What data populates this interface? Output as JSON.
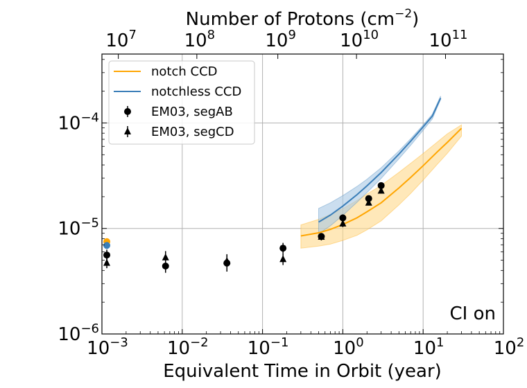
{
  "chart_data": {
    "type": "scatter",
    "xlabel": "Equivalent Time in Orbit (year)",
    "x2label": "Number of Protons (cm$^{-2}$)",
    "x2label_main": "Number of Protons (cm",
    "x2label_exp": "−2",
    "x2label_close": ")",
    "ylabel": "",
    "xscale": "log",
    "yscale": "log",
    "xlim": [
      0.001,
      100
    ],
    "ylim": [
      1e-06,
      0.00045
    ],
    "grid": true,
    "legend_position": "top-left",
    "annotation": "CI on",
    "x_ticks": [
      {
        "value": 0.001,
        "base": "10",
        "exp": "−3"
      },
      {
        "value": 0.01,
        "base": "10",
        "exp": "−2"
      },
      {
        "value": 0.1,
        "base": "10",
        "exp": "−1"
      },
      {
        "value": 1,
        "base": "10",
        "exp": "0"
      },
      {
        "value": 10,
        "base": "10",
        "exp": "1"
      },
      {
        "value": 100,
        "base": "10",
        "exp": "2"
      }
    ],
    "y_ticks": [
      {
        "value": 1e-06,
        "base": "10",
        "exp": "−6"
      },
      {
        "value": 1e-05,
        "base": "10",
        "exp": "−5"
      },
      {
        "value": 0.0001,
        "base": "10",
        "exp": "−4"
      }
    ],
    "x2_ticks": [
      {
        "at_year": 0.0016,
        "base": "10",
        "exp": "7"
      },
      {
        "at_year": 0.0152,
        "base": "10",
        "exp": "8"
      },
      {
        "at_year": 0.155,
        "base": "10",
        "exp": "9"
      },
      {
        "at_year": 1.48,
        "base": "10",
        "exp": "10"
      },
      {
        "at_year": 19.0,
        "base": "10",
        "exp": "11"
      }
    ],
    "colors": {
      "notch": "#ffa500",
      "notchless": "#3a7eb8",
      "notch_band": "#ffd98a",
      "notchless_band": "#a9c8e4",
      "markers": "#000000",
      "grid": "#b0b0b0"
    },
    "series": [
      {
        "name": "notch CCD",
        "kind": "line",
        "x": [
          0.3,
          0.5,
          0.7,
          1.0,
          1.5,
          2.0,
          3.0,
          5.0,
          7.0,
          10.0,
          15.0,
          20.0,
          30.0
        ],
        "y": [
          8.5e-06,
          9.1e-06,
          9.8e-06,
          1.09e-05,
          1.26e-05,
          1.44e-05,
          1.75e-05,
          2.42e-05,
          3.05e-05,
          3.93e-05,
          5.32e-05,
          6.54e-05,
          8.9e-05
        ],
        "y_low": [
          6.5e-06,
          6.8e-06,
          7.1e-06,
          7.7e-06,
          8.6e-06,
          9.7e-06,
          1.18e-05,
          1.67e-05,
          2.15e-05,
          2.87e-05,
          4.05e-05,
          5.15e-05,
          7.5e-05
        ],
        "y_high": [
          1.08e-05,
          1.22e-05,
          1.36e-05,
          1.54e-05,
          1.84e-05,
          2.12e-05,
          2.56e-05,
          3.4e-05,
          4.15e-05,
          5.13e-05,
          6.59e-05,
          7.89e-05,
          9.6e-05
        ]
      },
      {
        "name": "notchless CCD",
        "kind": "line",
        "x": [
          0.5,
          0.7,
          1.0,
          1.5,
          2.0,
          3.0,
          5.0,
          7.0,
          10.0,
          13.0,
          16.5
        ],
        "y": [
          1.15e-05,
          1.34e-05,
          1.63e-05,
          2.09e-05,
          2.54e-05,
          3.39e-05,
          5.07e-05,
          6.73e-05,
          9.18e-05,
          0.000116,
          0.000172
        ],
        "y_low": [
          8.9e-06,
          1.06e-05,
          1.33e-05,
          1.77e-05,
          2.19e-05,
          2.98e-05,
          4.57e-05,
          6.14e-05,
          8.51e-05,
          0.000109,
          0.000167
        ],
        "y_high": [
          1.55e-05,
          1.75e-05,
          2.05e-05,
          2.5e-05,
          2.93e-05,
          3.76e-05,
          5.44e-05,
          7.1e-05,
          9.56e-05,
          0.000121,
          0.00018
        ]
      },
      {
        "name": "EM03, segAB",
        "kind": "errorbar",
        "marker": "circle",
        "x": [
          0.00115,
          0.0062,
          0.036,
          0.18,
          0.54,
          1.0,
          2.1,
          3.0
        ],
        "y": [
          5.6e-06,
          4.4e-06,
          4.7e-06,
          6.5e-06,
          8.4e-06,
          1.26e-05,
          1.92e-05,
          2.55e-05
        ],
        "yerr_low": [
          4.9e-06,
          3.8e-06,
          3.9e-06,
          5.8e-06,
          7.8e-06,
          1.16e-05,
          1.82e-05,
          2.43e-05
        ],
        "yerr_high": [
          6.3e-06,
          5e-06,
          5.7e-06,
          7.3e-06,
          9e-06,
          1.36e-05,
          2.02e-05,
          2.67e-05
        ]
      },
      {
        "name": "EM03, segCD",
        "kind": "errorbar",
        "marker": "triangle",
        "x": [
          0.00115,
          0.0062,
          0.036,
          0.18,
          0.54,
          1.0,
          2.1,
          3.0
        ],
        "y": [
          4.7e-06,
          5.3e-06,
          4.9e-06,
          5.1e-06,
          8.3e-06,
          1.11e-05,
          1.75e-05,
          2.27e-05
        ],
        "yerr_low": [
          4.2e-06,
          4.6e-06,
          4.3e-06,
          4.5e-06,
          7.7e-06,
          1.03e-05,
          1.66e-05,
          2.16e-05
        ],
        "yerr_high": [
          5.3e-06,
          6.1e-06,
          5.6e-06,
          5.8e-06,
          8.9e-06,
          1.19e-05,
          1.84e-05,
          2.38e-05
        ]
      },
      {
        "name": "",
        "kind": "scatter",
        "marker": "circle",
        "color": "#ffa500",
        "x": [
          0.00115
        ],
        "y": [
          7.5e-06
        ]
      },
      {
        "name": "",
        "kind": "scatter",
        "marker": "circle",
        "color": "#3a7eb8",
        "x": [
          0.00115
        ],
        "y": [
          6.9e-06
        ]
      }
    ]
  }
}
